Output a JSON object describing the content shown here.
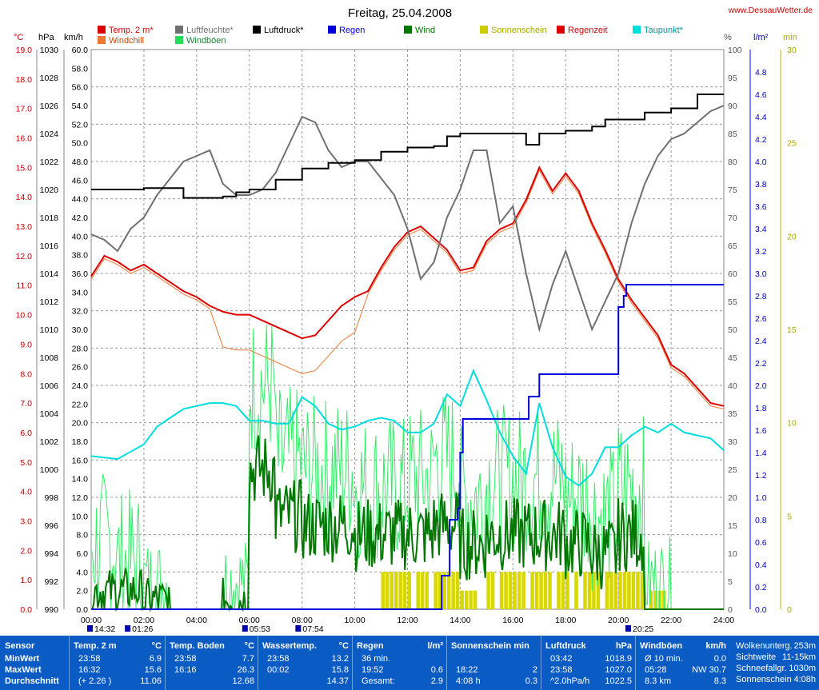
{
  "chart_data": {
    "type": "line",
    "title": "Freitag, 25.04.2008",
    "source": "www.DessauWetter.de",
    "legend": {
      "row1": [
        {
          "label": "Temp. 2 m*",
          "color": "#dd0000"
        },
        {
          "label": "Luftfeuchte*",
          "color": "#707070"
        },
        {
          "label": "Luftdruck*",
          "color": "#000000"
        },
        {
          "label": "Regen",
          "color": "#0000dd"
        },
        {
          "label": "Wind",
          "color": "#007700"
        },
        {
          "label": "Sonnenschein",
          "color": "#cccc00"
        },
        {
          "label": "Regenzeit",
          "color": "#dd0000"
        },
        {
          "label": "Taupunkt*",
          "color": "#00dddd"
        }
      ],
      "row2": [
        {
          "label": "Windchill",
          "color": "#ee7733"
        },
        {
          "label": "Windböen",
          "color": "#22dd55"
        }
      ]
    },
    "axis_units": {
      "temp": "°C",
      "pressure": "hPa",
      "wind": "km/h",
      "humidity": "%",
      "rain": "l/m²",
      "sun": "min"
    },
    "axis_ticks": {
      "temp": [
        "0.0",
        "1.0",
        "2.0",
        "3.0",
        "4.0",
        "5.0",
        "6.0",
        "7.0",
        "8.0",
        "9.0",
        "10.0",
        "11.0",
        "12.0",
        "13.0",
        "14.0",
        "15.0",
        "16.0",
        "17.0",
        "18.0",
        "19.0"
      ],
      "pressure": [
        "990",
        "992",
        "994",
        "996",
        "998",
        "1000",
        "1002",
        "1004",
        "1006",
        "1008",
        "1010",
        "1012",
        "1014",
        "1016",
        "1018",
        "1020",
        "1022",
        "1024",
        "1026",
        "1028",
        "1030"
      ],
      "wind": [
        "0.0",
        "2.0",
        "4.0",
        "6.0",
        "8.0",
        "10.0",
        "12.0",
        "14.0",
        "16.0",
        "18.0",
        "20.0",
        "22.0",
        "24.0",
        "26.0",
        "28.0",
        "30.0",
        "32.0",
        "34.0",
        "36.0",
        "38.0",
        "40.0",
        "42.0",
        "44.0",
        "46.0",
        "48.0",
        "50.0",
        "52.0",
        "54.0",
        "56.0",
        "58.0",
        "60.0"
      ],
      "humidity": [
        "0",
        "5",
        "10",
        "15",
        "20",
        "25",
        "30",
        "35",
        "40",
        "45",
        "50",
        "55",
        "60",
        "65",
        "70",
        "75",
        "80",
        "85",
        "90",
        "95",
        "100"
      ],
      "rain": [
        "0.0",
        "0.2",
        "0.4",
        "0.6",
        "0.8",
        "1.0",
        "1.2",
        "1.4",
        "1.6",
        "1.8",
        "2.0",
        "2.2",
        "2.4",
        "2.6",
        "2.8",
        "3.0",
        "3.2",
        "3.4",
        "3.6",
        "3.8",
        "4.0",
        "4.2",
        "4.4",
        "4.6",
        "4.8"
      ],
      "sun": [
        "0",
        "5",
        "10",
        "15",
        "20",
        "25",
        "30"
      ],
      "time": [
        "00:00",
        "02:00",
        "04:00",
        "06:00",
        "08:00",
        "10:00",
        "12:00",
        "14:00",
        "16:00",
        "18:00",
        "20:00",
        "22:00",
        "24:00"
      ]
    },
    "event_markers": [
      {
        "label": "14:32",
        "hour": 0.0
      },
      {
        "label": "01:26",
        "hour": 1.43
      },
      {
        "label": "05:53",
        "hour": 5.88
      },
      {
        "label": "07:54",
        "hour": 7.9
      },
      {
        "label": "20:25",
        "hour": 20.42
      }
    ],
    "series": [
      {
        "name": "Temp. 2 m*",
        "axis": "temp",
        "x": [
          0,
          0.5,
          1,
          1.5,
          2,
          2.5,
          3,
          3.5,
          4,
          4.5,
          5,
          5.5,
          6,
          6.5,
          7,
          7.5,
          8,
          8.5,
          9,
          9.5,
          10,
          10.5,
          11,
          11.5,
          12,
          12.5,
          13,
          13.5,
          14,
          14.5,
          15,
          15.5,
          16,
          16.5,
          17,
          17.5,
          18,
          18.5,
          19,
          19.5,
          20,
          20.5,
          21,
          21.5,
          22,
          22.5,
          23,
          23.5,
          24
        ],
        "y": [
          11.3,
          12.0,
          11.8,
          11.5,
          11.7,
          11.4,
          11.1,
          10.8,
          10.6,
          10.3,
          10.1,
          10.0,
          10.0,
          9.8,
          9.6,
          9.4,
          9.2,
          9.3,
          9.8,
          10.3,
          10.6,
          10.8,
          11.6,
          12.3,
          12.8,
          13.0,
          12.6,
          12.2,
          11.5,
          11.6,
          12.5,
          12.9,
          13.1,
          13.9,
          15.0,
          14.2,
          14.8,
          14.2,
          13.1,
          12.2,
          11.2,
          10.5,
          9.9,
          9.3,
          8.3,
          8.0,
          7.5,
          7.0,
          6.9
        ]
      },
      {
        "name": "Luftfeuchte*",
        "axis": "humidity",
        "x": [
          0,
          0.5,
          1,
          1.5,
          2,
          2.5,
          3,
          3.5,
          4,
          4.5,
          5,
          5.5,
          6,
          6.5,
          7,
          7.5,
          8,
          8.5,
          9,
          9.5,
          10,
          10.5,
          11,
          11.5,
          12,
          12.5,
          13,
          13.5,
          14,
          14.5,
          15,
          15.5,
          16,
          16.5,
          17,
          17.5,
          18,
          18.5,
          19,
          19.5,
          20,
          20.5,
          21,
          21.5,
          22,
          22.5,
          23,
          23.5,
          24
        ],
        "y": [
          67,
          66,
          64,
          68,
          70,
          74,
          77,
          80,
          81,
          82,
          76,
          74,
          74,
          75,
          78,
          83,
          88,
          87,
          82,
          79,
          80,
          80,
          77,
          74,
          68,
          59,
          62,
          70,
          75,
          82,
          82,
          69,
          72,
          60,
          50,
          58,
          64,
          57,
          50,
          55,
          60,
          69,
          76,
          81,
          84,
          85,
          87,
          89,
          90
        ]
      },
      {
        "name": "Luftdruck*",
        "axis": "pressure",
        "x": [
          0,
          1,
          2,
          2.7,
          3.5,
          4.5,
          5,
          5.5,
          6,
          6.5,
          7,
          7.5,
          8,
          8.5,
          9,
          9.5,
          10,
          11,
          12,
          13,
          13.5,
          14,
          15,
          16,
          16.5,
          17,
          17.5,
          18,
          18.5,
          19,
          19.5,
          20,
          20.5,
          21,
          22,
          23,
          24
        ],
        "y": [
          1020.0,
          1020.0,
          1020.1,
          1020.1,
          1019.4,
          1019.4,
          1019.5,
          1019.8,
          1020.0,
          1020.0,
          1020.7,
          1020.7,
          1021.5,
          1021.5,
          1021.9,
          1021.9,
          1022.1,
          1022.7,
          1023.0,
          1023.1,
          1023.8,
          1024.0,
          1024.0,
          1024.0,
          1023.2,
          1024.0,
          1024.0,
          1024.2,
          1024.2,
          1024.5,
          1025.0,
          1025.0,
          1025.0,
          1025.5,
          1025.8,
          1026.8,
          1026.8
        ]
      },
      {
        "name": "Taupunkt*",
        "axis": "temp",
        "x": [
          0,
          1,
          2,
          2.5,
          3,
          3.5,
          4,
          4.5,
          5,
          5.5,
          6,
          6.5,
          7,
          7.5,
          8,
          8.5,
          9,
          9.5,
          10,
          10.5,
          11,
          11.5,
          12,
          12.5,
          13,
          13.5,
          14,
          14.5,
          15,
          15.5,
          16,
          16.5,
          17,
          17.5,
          18,
          18.5,
          19,
          19.5,
          20,
          20.5,
          21,
          21.5,
          22,
          22.5,
          23,
          23.5,
          24
        ],
        "y": [
          5.2,
          5.1,
          5.6,
          6.2,
          6.5,
          6.8,
          6.9,
          7.0,
          7.0,
          6.9,
          6.4,
          6.4,
          6.3,
          6.3,
          7.2,
          6.9,
          6.3,
          6.1,
          6.2,
          6.4,
          6.5,
          6.4,
          6.0,
          6.0,
          6.3,
          7.3,
          6.9,
          8.1,
          7.1,
          6.0,
          5.2,
          4.6,
          7.0,
          5.5,
          4.5,
          4.2,
          4.6,
          5.5,
          5.5,
          5.9,
          6.2,
          6.0,
          6.3,
          6.0,
          5.9,
          5.8,
          5.4
        ]
      },
      {
        "name": "Regen",
        "axis": "rain",
        "x": [
          0,
          13.1,
          13.3,
          13.6,
          13.9,
          14.0,
          14.1,
          15.0,
          16.5,
          16.6,
          17.0,
          17.5,
          19.9,
          20.0,
          20.2,
          20.3,
          24
        ],
        "y": [
          0,
          0,
          0.3,
          0.8,
          0.9,
          1.4,
          1.7,
          1.7,
          1.7,
          1.9,
          2.1,
          2.1,
          2.1,
          2.7,
          2.8,
          2.9,
          2.9
        ]
      }
    ],
    "sun_min": [
      0,
      0,
      0,
      0,
      0,
      0,
      0,
      0,
      0,
      0,
      0,
      2,
      2,
      2,
      1,
      2,
      2,
      2,
      2,
      2,
      2,
      1,
      0,
      0,
      0
    ],
    "wind_avg_profile": [
      2,
      2,
      1,
      0,
      0,
      1,
      15,
      10,
      9,
      9,
      8,
      8,
      8,
      9,
      7,
      8,
      8,
      8,
      7,
      6,
      8,
      0,
      0,
      0,
      0
    ],
    "wind_gust_profile": [
      7,
      5,
      3,
      0,
      0,
      3,
      24,
      16,
      15,
      15,
      13,
      13,
      14,
      16,
      12,
      14,
      14,
      14,
      12,
      10,
      13,
      3,
      0,
      0,
      0
    ]
  },
  "table": {
    "sensor": {
      "header": "Sensor",
      "rows": [
        "MinWert",
        "MaxWert",
        "Durchschnitt"
      ]
    },
    "temp2m": {
      "header": "Temp. 2 m",
      "unit": "°C",
      "rows": [
        [
          "23:58",
          "6.9"
        ],
        [
          "16:32",
          "15.6"
        ],
        [
          "(+ 2.26 )",
          "11.06"
        ]
      ]
    },
    "tempBoden": {
      "header": "Temp. Boden",
      "unit": "°C",
      "rows": [
        [
          "23:58",
          "7.7"
        ],
        [
          "16:16",
          "26.3"
        ],
        [
          "",
          "12.68"
        ]
      ]
    },
    "wasser": {
      "header": "Wassertemp.",
      "unit": "°C",
      "rows": [
        [
          "23:58",
          "13.2"
        ],
        [
          "00:02",
          "15.8"
        ],
        [
          "",
          "14.37"
        ]
      ]
    },
    "regen": {
      "header": "Regen",
      "unit": "l/m²",
      "rows": [
        [
          "36 min.",
          ""
        ],
        [
          "19:52",
          "0.6"
        ],
        [
          "Gesamt:",
          "2.9"
        ]
      ]
    },
    "sonne": {
      "header": "Sonnenschein min",
      "unit": "",
      "rows": [
        [
          "",
          ""
        ],
        [
          "18:22",
          "2"
        ],
        [
          "4:08 h",
          "0.3"
        ]
      ]
    },
    "luftdruck": {
      "header": "Luftdruck",
      "unit": "hPa",
      "rows": [
        [
          "03:42",
          "1018.9"
        ],
        [
          "23:58",
          "1027.0"
        ],
        [
          "^2.0hPa/h",
          "1022.5"
        ]
      ]
    },
    "windboeen": {
      "header": "Windböen",
      "unit": "km/h",
      "rows": [
        [
          "Ø 10 min.",
          "0.0"
        ],
        [
          "05:28",
          "NW 30.7"
        ],
        [
          "8.3 km",
          "8.3"
        ]
      ]
    },
    "extra": {
      "rows": [
        [
          "Wolkenunterg.",
          "253m"
        ],
        [
          "Sichtweite",
          "11-15km"
        ],
        [
          "Schneefallgr.",
          "1030m"
        ],
        [
          "Sonnenschein",
          "4:08h"
        ]
      ]
    }
  }
}
